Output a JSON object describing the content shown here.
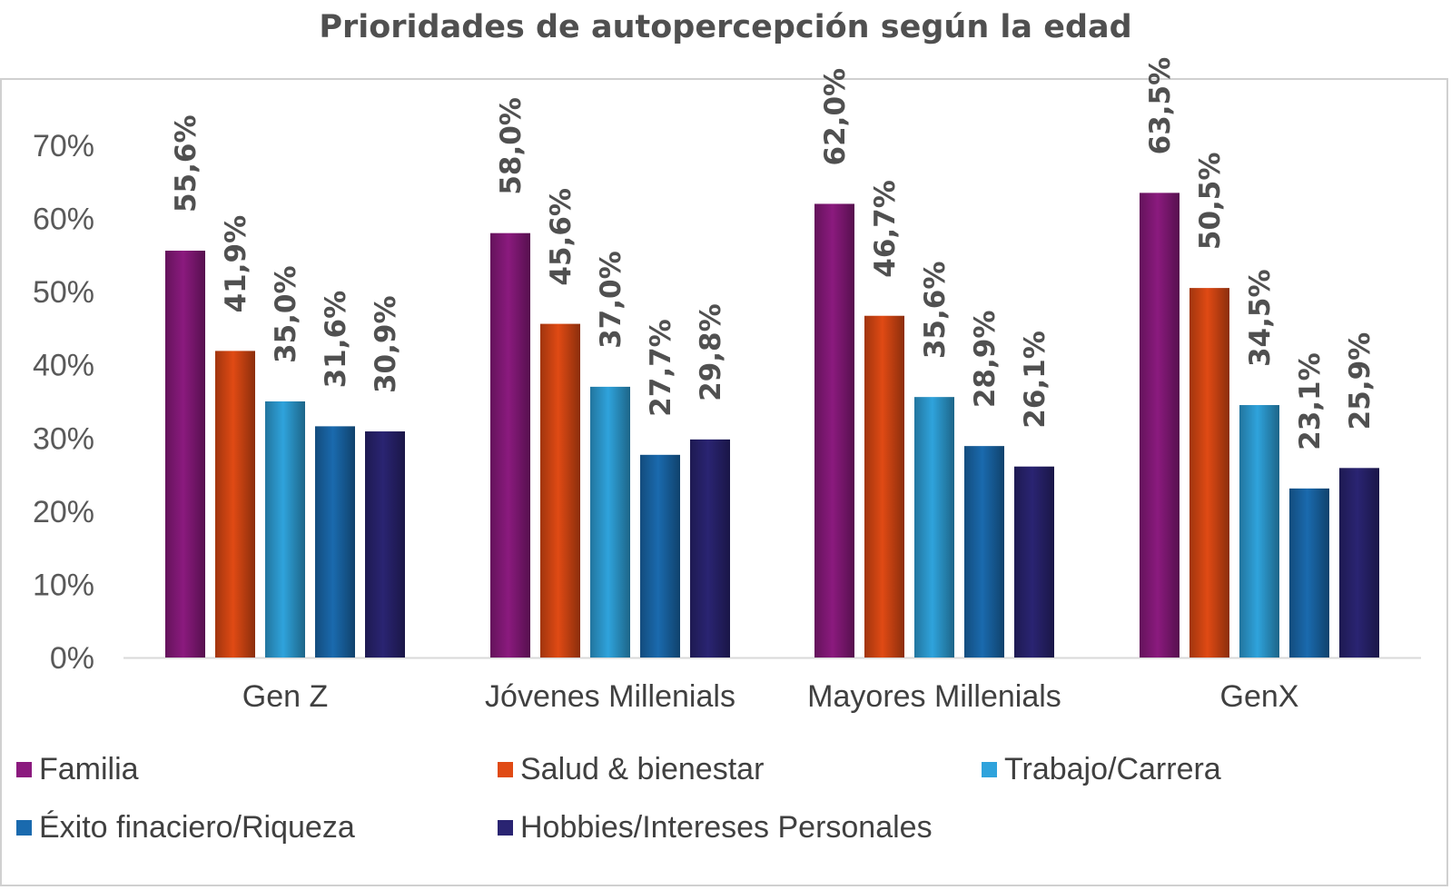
{
  "chart_data": {
    "type": "bar",
    "title": "Prioridades de autopercepción según la edad",
    "categories": [
      "Gen Z",
      "Jóvenes Millenials",
      "Mayores Millenials",
      "GenX"
    ],
    "ylim": [
      0,
      70
    ],
    "yticks": [
      "0%",
      "10%",
      "20%",
      "30%",
      "40%",
      "50%",
      "60%",
      "70%"
    ],
    "grid": false,
    "legend_position": "bottom",
    "series": [
      {
        "name": "Familia",
        "color": "#8b1a7e",
        "values": [
          55.6,
          58.0,
          62.0,
          63.5
        ],
        "labels": [
          "55,6%",
          "58,0%",
          "62,0%",
          "63,5%"
        ]
      },
      {
        "name": "Salud & bienestar",
        "color": "#e04a14",
        "values": [
          41.9,
          45.6,
          46.7,
          50.5
        ],
        "labels": [
          "41,9%",
          "45,6%",
          "46,7%",
          "50,5%"
        ]
      },
      {
        "name": "Trabajo/Carrera",
        "color": "#2fa3dc",
        "values": [
          35.0,
          37.0,
          35.6,
          34.5
        ],
        "labels": [
          "35,0%",
          "37,0%",
          "35,6%",
          "34,5%"
        ]
      },
      {
        "name": "Éxito finaciero/Riqueza",
        "color": "#1a6aae",
        "values": [
          31.6,
          27.7,
          28.9,
          23.1
        ],
        "labels": [
          "31,6%",
          "27,7%",
          "28,9%",
          "23,1%"
        ]
      },
      {
        "name": "Hobbies/Intereses Personales",
        "color": "#2a2472",
        "values": [
          30.9,
          29.8,
          26.1,
          25.9
        ],
        "labels": [
          "30,9%",
          "29,8%",
          "26,1%",
          "25,9%"
        ]
      }
    ]
  }
}
